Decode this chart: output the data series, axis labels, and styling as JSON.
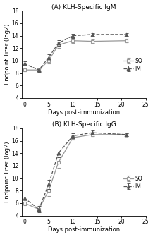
{
  "days": [
    0,
    3,
    5,
    7,
    10,
    14,
    21
  ],
  "igm_sq_mean": [
    8.5,
    8.5,
    10.0,
    12.5,
    13.2,
    13.1,
    13.2
  ],
  "igm_sq_sem": [
    0.25,
    0.25,
    0.45,
    0.45,
    0.35,
    0.25,
    0.25
  ],
  "igm_im_mean": [
    9.5,
    8.5,
    10.5,
    12.8,
    14.0,
    14.2,
    14.2
  ],
  "igm_im_sem": [
    0.35,
    0.35,
    0.5,
    0.45,
    0.35,
    0.25,
    0.25
  ],
  "igg_sq_mean": [
    6.0,
    5.0,
    8.0,
    12.5,
    16.5,
    17.0,
    17.0
  ],
  "igg_sq_sem": [
    0.4,
    0.7,
    0.9,
    0.8,
    0.35,
    0.3,
    0.25
  ],
  "igg_im_mean": [
    6.8,
    5.0,
    9.0,
    14.0,
    16.8,
    17.3,
    17.0
  ],
  "igg_im_sem": [
    0.55,
    0.5,
    0.7,
    0.6,
    0.35,
    0.3,
    0.25
  ],
  "ylim": [
    4,
    18
  ],
  "yticks": [
    4,
    6,
    8,
    10,
    12,
    14,
    16,
    18
  ],
  "xlim": [
    -0.5,
    24
  ],
  "xticks": [
    0,
    5,
    10,
    15,
    20,
    25
  ],
  "xlabel": "Days post-immunization",
  "ylabel": "Endpoint Titer (log2)",
  "title_a": "(A) KLH-Specific IgM",
  "title_b": "(B) KLH-Specific IgG",
  "sq_color": "#999999",
  "im_color": "#555555",
  "bg_color": "#ffffff"
}
